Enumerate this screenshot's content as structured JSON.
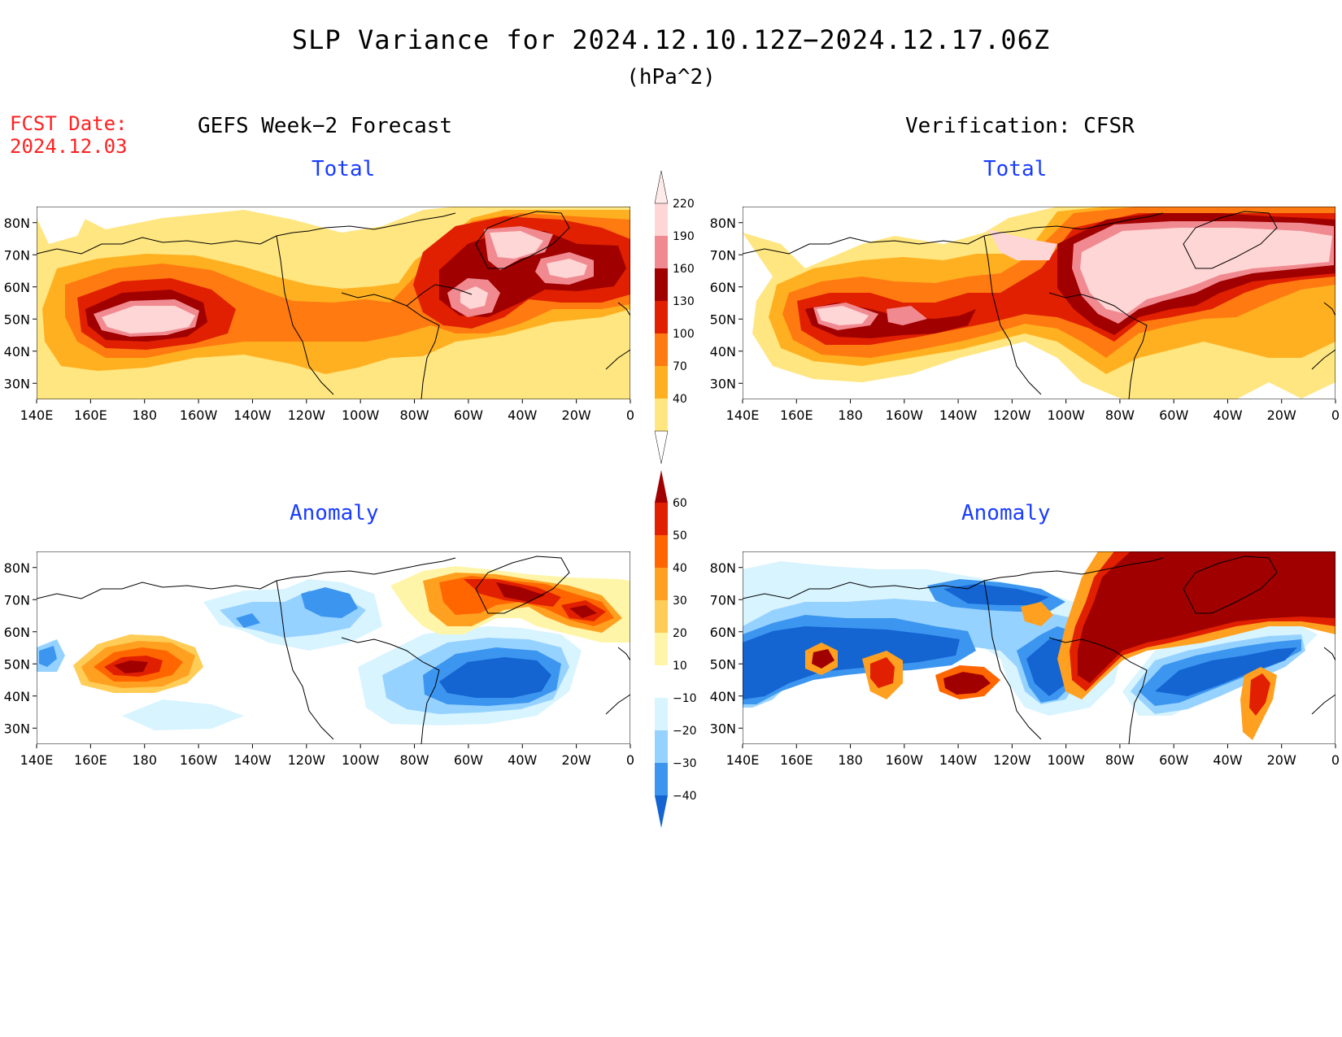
{
  "title": "SLP Variance for 2024.12.10.12Z−2024.12.17.06Z",
  "units": "(hPa^2)",
  "fcst_date_label": "FCST Date:",
  "fcst_date_value": "2024.12.03",
  "left_column_title": "GEFS Week−2 Forecast",
  "right_column_title": "Verification: CFSR",
  "panels": {
    "fcst_total": {
      "title": "Total"
    },
    "fcst_anom": {
      "title": "Anomaly"
    },
    "ver_total": {
      "title": "Total"
    },
    "ver_anom": {
      "title": "Anomaly"
    }
  },
  "lat_labels": [
    "80N",
    "70N",
    "60N",
    "50N",
    "40N",
    "30N"
  ],
  "lon_labels": [
    "140E",
    "160E",
    "180",
    "160W",
    "140W",
    "120W",
    "100W",
    "80W",
    "60W",
    "40W",
    "20W",
    "0"
  ],
  "total_colorbar": {
    "labels": [
      "40",
      "70",
      "100",
      "130",
      "160",
      "190",
      "220"
    ],
    "colors": [
      "#ffe680",
      "#ffb020",
      "#ff7a10",
      "#e02000",
      "#a00000",
      "#f08a90",
      "#ffd6d6",
      "#ffeaea"
    ]
  },
  "anomaly_colorbar": {
    "labels": [
      "60",
      "50",
      "40",
      "30",
      "20",
      "10",
      "−10",
      "−20",
      "−30",
      "−40"
    ],
    "colors": [
      "#a00000",
      "#e02000",
      "#ff6600",
      "#ffa020",
      "#ffcc55",
      "#fff5a8",
      "#ffffff",
      "#d8f4ff",
      "#96d2ff",
      "#3c96f0",
      "#1464d2"
    ]
  },
  "palette": {
    "t1": "#ffe680",
    "t2": "#ffb020",
    "t3": "#ff7a10",
    "t4": "#e02000",
    "t5": "#a00000",
    "t6": "#f08a90",
    "t7": "#ffd6d6",
    "a_r1": "#fff5a8",
    "a_r2": "#ffcc55",
    "a_r3": "#ffa020",
    "a_r4": "#ff6600",
    "a_r5": "#e02000",
    "a_r6": "#a00000",
    "a_b1": "#d8f4ff",
    "a_b2": "#96d2ff",
    "a_b3": "#3c96f0",
    "a_b4": "#1464d2"
  }
}
